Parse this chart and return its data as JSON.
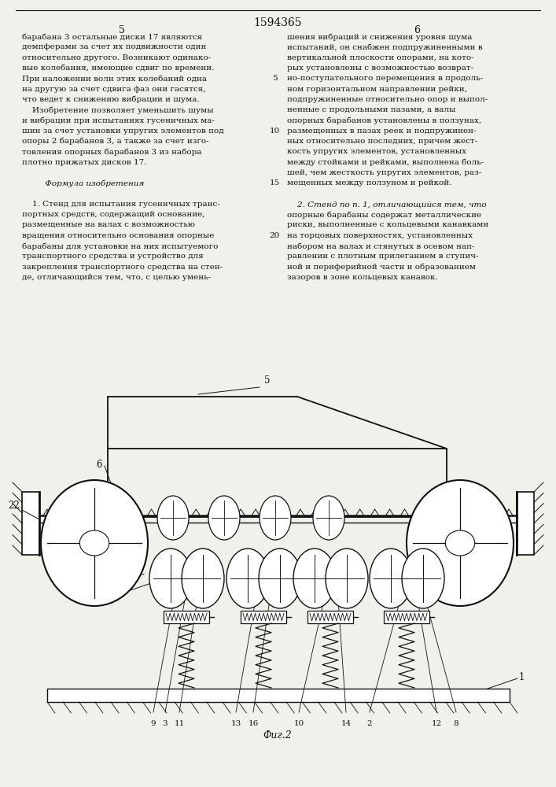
{
  "bg_color": "#f2f0eb",
  "text_color": "#111111",
  "line_color": "#111111",
  "patent_number": "1594365",
  "col1_page": "5",
  "col2_page": "6",
  "fig_label": "Фиг.2",
  "col1_lines": [
    "барабана 3 остальные диски 17 являются",
    "демпферами за счет их подвижности один",
    "относительно другого. Возникают одинако-",
    "вые колебания, имеющие сдвиг по времени.",
    "При наложении волн этих колебаний одна",
    "на другую за счет сдвига фаз они гасятся,",
    "что ведет к снижению вибрации и шума.",
    "    Изобретение позволяет уменьшить шумы",
    "и вибрации при испытаниях гусеничных ма-",
    "шин за счет установки упругих элементов под",
    "опоры 2 барабанов 3, а также за счет изго-",
    "товления опорных барабанов 3 из набора",
    "плотно прижатых дисков 17.",
    "",
    "         Формула изобретения",
    "",
    "    1. Стенд для испытания гусеничных транс-",
    "портных средств, содержащий основание,",
    "размещенные на валах с возможностью",
    "вращения относительно основания опорные",
    "барабаны для установки на них испытуемого",
    "транспортного средства и устройство для",
    "закрепления транспортного средства на стен-",
    "де, отличающийся тем, что, с целью умень-"
  ],
  "col1_italic": [
    14
  ],
  "col2_lines": [
    "шения вибраций и снижения уровня шума",
    "испытаний, он снабжен подпружиненными в",
    "вертикальной плоскости опорами, на кото-",
    "рых установлены с возможностью возврат-",
    "но-поступательного перемещения в продоль-",
    "ном горизонтальном направлении рейки,",
    "подпружиненные относительно опор и выпол-",
    "ненные с продольными пазами, а валы",
    "опорных барабанов установлены в ползунах,",
    "размещенных в пазах реек и подпружинен-",
    "ных относительно последних, причем жест-",
    "кость упругих элементов, установленных",
    "между стойками и рейками, выполнена боль-",
    "шей, чем жесткость упругих элементов, раз-",
    "мещенных между ползуном и рейкой.",
    "",
    "    2. Стенд по п. 1, отличающийся тем, что",
    "опорные барабаны содержат металлические",
    "риски, выполненные с кольцевыми канавками",
    "на торцовых поверхностях, установленных",
    "набором на валах и стянутых в осевом нап-",
    "равлении с плотным прилеганием в ступич-",
    "ной и периферийной части и образованием",
    "зазоров в зоне кольцевых канавок."
  ],
  "col2_italic_words": [
    "отличающийся"
  ]
}
